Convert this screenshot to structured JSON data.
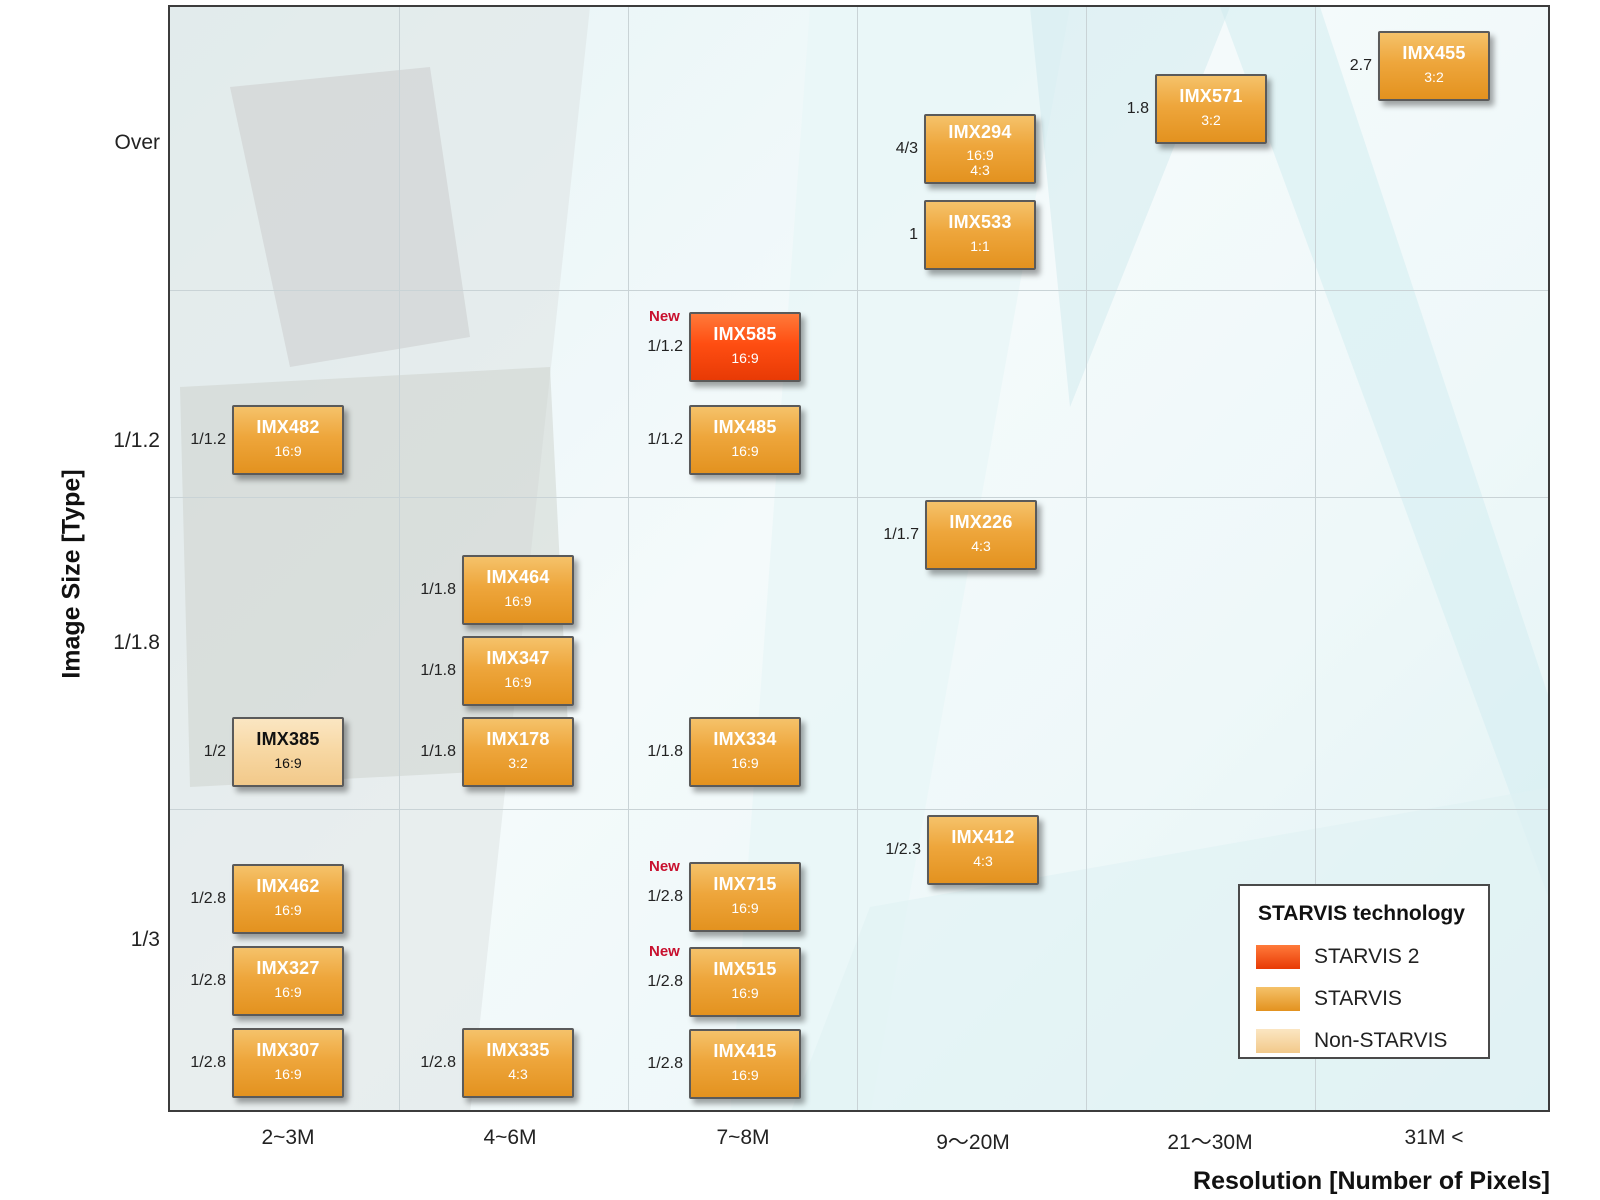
{
  "chart_data": {
    "type": "scatter",
    "title": "",
    "xlabel": "Resolution  [Number of Pixels]",
    "ylabel": "Image Size [Type]",
    "x_categories": [
      "2~3M",
      "4~6M",
      "7~8M",
      "9～20M",
      "21～30M",
      "31M <"
    ],
    "y_ticks": [
      "Over",
      "1/1.2",
      "1/1.8",
      "1/3"
    ],
    "grid": true,
    "legend": {
      "title": "STARVIS technology",
      "placement": "bottom-right",
      "items": [
        {
          "label": "STARVIS 2",
          "color": "#ff4e12"
        },
        {
          "label": "STARVIS",
          "color": "#eea63c"
        },
        {
          "label": "Non-STARVIS",
          "color": "#f7d7a2"
        }
      ]
    },
    "new_label": "New",
    "sensors": [
      {
        "name": "IMX482",
        "ratio": "16:9",
        "size": "1/1.2",
        "resolution": "2~3M",
        "type": "STARVIS"
      },
      {
        "name": "IMX385",
        "ratio": "16:9",
        "size": "1/2",
        "resolution": "2~3M",
        "type": "Non-STARVIS"
      },
      {
        "name": "IMX462",
        "ratio": "16:9",
        "size": "1/2.8",
        "resolution": "2~3M",
        "type": "STARVIS"
      },
      {
        "name": "IMX327",
        "ratio": "16:9",
        "size": "1/2.8",
        "resolution": "2~3M",
        "type": "STARVIS"
      },
      {
        "name": "IMX307",
        "ratio": "16:9",
        "size": "1/2.8",
        "resolution": "2~3M",
        "type": "STARVIS"
      },
      {
        "name": "IMX464",
        "ratio": "16:9",
        "size": "1/1.8",
        "resolution": "4~6M",
        "type": "STARVIS"
      },
      {
        "name": "IMX347",
        "ratio": "16:9",
        "size": "1/1.8",
        "resolution": "4~6M",
        "type": "STARVIS"
      },
      {
        "name": "IMX178",
        "ratio": "3:2",
        "size": "1/1.8",
        "resolution": "4~6M",
        "type": "STARVIS"
      },
      {
        "name": "IMX335",
        "ratio": "4:3",
        "size": "1/2.8",
        "resolution": "4~6M",
        "type": "STARVIS"
      },
      {
        "name": "IMX585",
        "ratio": "16:9",
        "size": "1/1.2",
        "resolution": "7~8M",
        "type": "STARVIS 2",
        "new": true
      },
      {
        "name": "IMX485",
        "ratio": "16:9",
        "size": "1/1.2",
        "resolution": "7~8M",
        "type": "STARVIS"
      },
      {
        "name": "IMX334",
        "ratio": "16:9",
        "size": "1/1.8",
        "resolution": "7~8M",
        "type": "STARVIS"
      },
      {
        "name": "IMX715",
        "ratio": "16:9",
        "size": "1/2.8",
        "resolution": "7~8M",
        "type": "STARVIS",
        "new": true
      },
      {
        "name": "IMX515",
        "ratio": "16:9",
        "size": "1/2.8",
        "resolution": "7~8M",
        "type": "STARVIS",
        "new": true
      },
      {
        "name": "IMX415",
        "ratio": "16:9",
        "size": "1/2.8",
        "resolution": "7~8M",
        "type": "STARVIS"
      },
      {
        "name": "IMX294",
        "ratio": "16:9",
        "ratio2": "4:3",
        "size": "4/3",
        "resolution": "9～20M",
        "type": "STARVIS"
      },
      {
        "name": "IMX533",
        "ratio": "1:1",
        "size": "1",
        "resolution": "9～20M",
        "type": "STARVIS"
      },
      {
        "name": "IMX226",
        "ratio": "4:3",
        "size": "1/1.7",
        "resolution": "9～20M",
        "type": "STARVIS"
      },
      {
        "name": "IMX412",
        "ratio": "4:3",
        "size": "1/2.3",
        "resolution": "9～20M",
        "type": "STARVIS"
      },
      {
        "name": "IMX571",
        "ratio": "3:2",
        "size": "1.8",
        "resolution": "21～30M",
        "type": "STARVIS"
      },
      {
        "name": "IMX455",
        "ratio": "3:2",
        "size": "2.7",
        "resolution": "31M <",
        "type": "STARVIS"
      }
    ]
  }
}
